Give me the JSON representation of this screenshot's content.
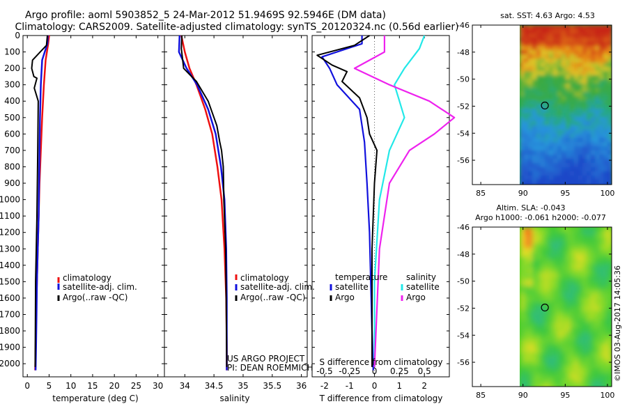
{
  "header": {
    "line1": "Argo profile: aoml 5903852_5 24-Mar-2012 51.9469S 92.5946E (DM data)",
    "line2": "Climatology: CARS2009. Satellite-adjusted climatology: synTS_20120324.nc (0.56d earlier)"
  },
  "credit": {
    "project": "US ARGO PROJECT",
    "pi": "PI: DEAN ROEMMICH",
    "stamp": "©IMOS 03-Aug-2017 14:05:36"
  },
  "colors": {
    "climatology": "#ee1111",
    "satellite_adj": "#1111dd",
    "argo": "#000000",
    "salinity_sat": "#22e8e8",
    "salinity_argo": "#ee22ee",
    "dotted_zero": "#555555"
  },
  "chart_data": [
    {
      "type": "line",
      "id": "temperature",
      "xlabel": "temperature (deg C)",
      "ylabel": "",
      "xlim": [
        -1,
        31.5
      ],
      "ylim": [
        2080,
        0
      ],
      "xticks": [
        0,
        5,
        10,
        15,
        20,
        25,
        30
      ],
      "yticks": [
        0,
        100,
        200,
        300,
        400,
        500,
        600,
        700,
        800,
        900,
        1000,
        1100,
        1200,
        1300,
        1400,
        1500,
        1600,
        1700,
        1800,
        1900,
        2000
      ],
      "legend": [
        "climatology",
        "satellite-adj. clim.",
        "Argo(..raw -QC)"
      ],
      "series": [
        {
          "name": "climatology",
          "x": [
            5.0,
            4.8,
            4.2,
            3.8,
            3.4,
            3.1,
            2.8,
            2.6,
            2.4,
            2.2,
            2.0,
            1.9,
            1.8
          ],
          "y": [
            0,
            50,
            150,
            300,
            500,
            700,
            900,
            1100,
            1300,
            1500,
            1700,
            1900,
            2040
          ]
        },
        {
          "name": "satellite-adj. clim.",
          "x": [
            4.7,
            4.6,
            3.4,
            3.1,
            2.9,
            2.8,
            2.7,
            2.6,
            2.4,
            2.2,
            2.1,
            2.0,
            1.9
          ],
          "y": [
            0,
            50,
            150,
            300,
            500,
            700,
            900,
            1100,
            1300,
            1500,
            1700,
            1900,
            2040
          ]
        },
        {
          "name": "Argo(..raw -QC)",
          "x": [
            4.6,
            4.4,
            2.6,
            1.2,
            1.0,
            1.5,
            2.2,
            1.6,
            2.5,
            2.4,
            2.2,
            1.9,
            1.8
          ],
          "y": [
            0,
            60,
            110,
            150,
            200,
            250,
            260,
            320,
            400,
            700,
            1100,
            1500,
            2020
          ]
        }
      ]
    },
    {
      "type": "line",
      "id": "salinity",
      "xlabel": "salinity",
      "ylabel": "",
      "xlim": [
        33.65,
        36.1
      ],
      "ylim": [
        2080,
        0
      ],
      "xticks": [
        34,
        34.5,
        35,
        35.5,
        36
      ],
      "xticklabels": [
        "34",
        "34.5",
        "35",
        "35.5",
        "36"
      ],
      "legend": [
        "climatology",
        "satellite-adj. clim.",
        "Argo(..raw -QC)"
      ],
      "series": [
        {
          "name": "climatology",
          "x": [
            33.94,
            34.0,
            34.08,
            34.2,
            34.35,
            34.47,
            34.56,
            34.63,
            34.68,
            34.71,
            34.72,
            34.72
          ],
          "y": [
            0,
            100,
            200,
            300,
            450,
            600,
            800,
            1000,
            1300,
            1600,
            1900,
            2040
          ]
        },
        {
          "name": "satellite-adj. clim.",
          "x": [
            33.91,
            33.9,
            34.03,
            34.21,
            34.4,
            34.53,
            34.62,
            34.68,
            34.71,
            34.72,
            34.72,
            34.72
          ],
          "y": [
            0,
            100,
            200,
            300,
            450,
            600,
            800,
            1000,
            1300,
            1600,
            1900,
            2040
          ]
        },
        {
          "name": "Argo(..raw -QC)",
          "x": [
            33.95,
            33.94,
            33.98,
            34.2,
            34.4,
            34.55,
            34.6,
            34.63,
            34.66,
            34.67,
            34.7,
            34.71,
            34.72
          ],
          "y": [
            0,
            80,
            200,
            280,
            400,
            550,
            650,
            700,
            800,
            1000,
            1300,
            1600,
            2020
          ]
        }
      ]
    },
    {
      "type": "line",
      "id": "difference",
      "xlabel": "T difference from climatology",
      "top_xlabel": "S difference from climatology",
      "xlim": [
        -2.5,
        3
      ],
      "ylim": [
        2080,
        0
      ],
      "xticks": [
        -2,
        -1,
        0,
        1,
        2
      ],
      "top_ticks": [
        -0.5,
        -0.25,
        0,
        0.25,
        0.5
      ],
      "top_ticklabels": [
        "-0.5",
        "-0.25",
        "0",
        "0.25",
        "0.5"
      ],
      "legend_temperature_title": "temperature",
      "legend_salinity_title": "salinity",
      "legend_temperature": [
        "satellite",
        "Argo"
      ],
      "legend_salinity": [
        "satellite",
        "Argo"
      ],
      "series": [
        {
          "name": "T satellite",
          "x": [
            -0.5,
            -0.5,
            -2.1,
            -1.8,
            -1.5,
            -0.6,
            -0.4,
            -0.3,
            -0.2,
            -0.15,
            -0.1,
            -0.05
          ],
          "y": [
            0,
            50,
            130,
            200,
            300,
            450,
            650,
            900,
            1200,
            1500,
            1800,
            2040
          ]
        },
        {
          "name": "T Argo",
          "x": [
            -0.2,
            -0.8,
            -2.3,
            -1.7,
            -1.1,
            -1.3,
            -0.6,
            -0.3,
            -0.2,
            0.1,
            0.0,
            -0.1,
            -0.1
          ],
          "y": [
            0,
            60,
            120,
            180,
            220,
            280,
            380,
            500,
            600,
            700,
            900,
            1300,
            2020
          ]
        },
        {
          "name": "S satellite",
          "x": [
            0.5,
            0.45,
            0.3,
            0.2,
            0.25,
            0.3,
            0.15,
            0.05,
            0.0,
            0.0
          ],
          "y": [
            0,
            80,
            200,
            300,
            400,
            500,
            700,
            1000,
            1500,
            2020
          ]
        },
        {
          "name": "S Argo",
          "x": [
            0.1,
            0.1,
            -0.2,
            0.15,
            0.55,
            0.8,
            0.6,
            0.35,
            0.15,
            0.05,
            0.0
          ],
          "y": [
            0,
            100,
            200,
            300,
            400,
            500,
            600,
            700,
            900,
            1300,
            2020
          ]
        }
      ]
    },
    {
      "type": "heatmap",
      "id": "sst_map",
      "title": "sat. SST: 4.63 Argo: 4.53",
      "xlim": [
        84,
        100.5
      ],
      "ylim": [
        -57.8,
        -46
      ],
      "xticks": [
        85,
        90,
        95,
        100
      ],
      "yticks": [
        -46,
        -48,
        -50,
        -52,
        -54,
        -56
      ],
      "argo_position": {
        "lon": 92.59,
        "lat": -51.95
      }
    },
    {
      "type": "heatmap",
      "id": "sla_map",
      "title": "Altim. SLA: -0.043",
      "subtitle": "Argo h1000: -0.061 h2000: -0.077",
      "xlim": [
        84,
        100.5
      ],
      "ylim": [
        -57.8,
        -46
      ],
      "xticks": [
        85,
        90,
        95,
        100
      ],
      "yticks": [
        -46,
        -48,
        -50,
        -52,
        -54,
        -56
      ],
      "argo_position": {
        "lon": 92.59,
        "lat": -51.95
      }
    }
  ]
}
